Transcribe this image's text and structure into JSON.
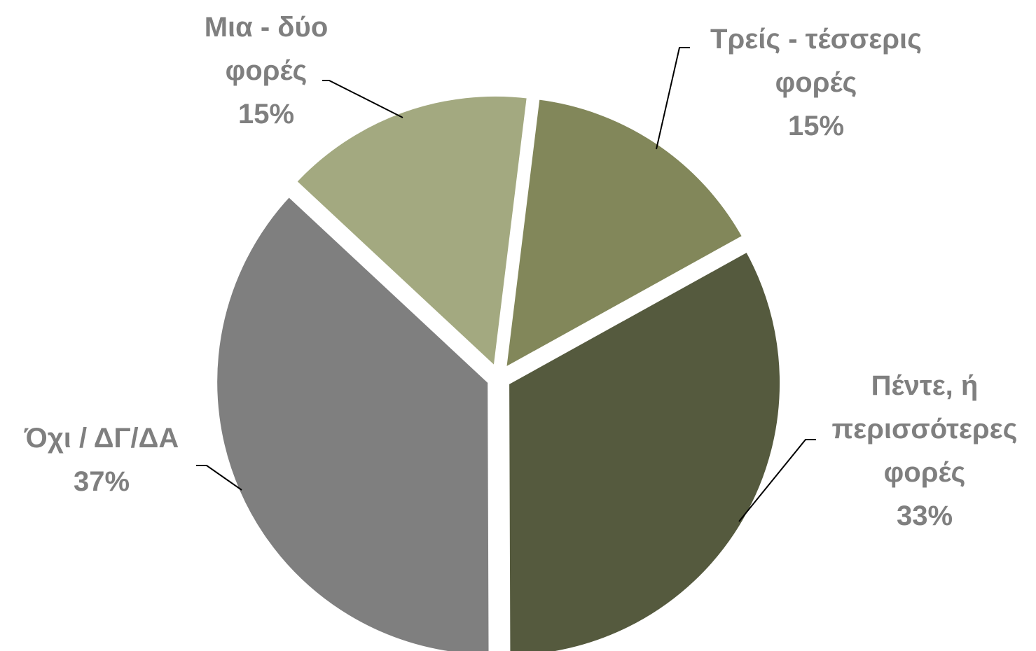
{
  "chart_data": {
    "type": "pie",
    "categories": [
      "Τρείς - τέσσερις φορές",
      "Πέντε, ή περισσότερες φορές",
      "Όχι / ΔΓ/ΔΑ",
      "Μια - δύο φορές"
    ],
    "values": [
      15,
      33,
      37,
      15
    ],
    "value_labels": [
      "15%",
      "33%",
      "37%",
      "15%"
    ],
    "colors": [
      "#82875a",
      "#555a3e",
      "#7f7f7f",
      "#a3a980"
    ]
  }
}
